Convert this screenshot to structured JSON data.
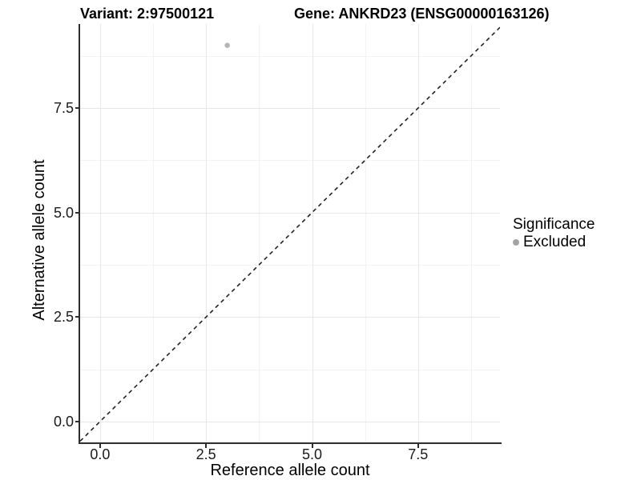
{
  "chart_data": {
    "type": "scatter",
    "titles": {
      "variant": "Variant: 2:97500121",
      "gene": "Gene: ANKRD23 (ENSG00000163126)"
    },
    "xlabel": "Reference allele count",
    "ylabel": "Alternative allele count",
    "xlim": [
      -0.47,
      9.43
    ],
    "ylim": [
      -0.5,
      9.51
    ],
    "xticks": [
      {
        "value": 0,
        "label": "0.0"
      },
      {
        "value": 2.5,
        "label": "2.5"
      },
      {
        "value": 5,
        "label": "5.0"
      },
      {
        "value": 7.5,
        "label": "7.5"
      }
    ],
    "yticks": [
      {
        "value": 0,
        "label": "0.0"
      },
      {
        "value": 2.5,
        "label": "2.5"
      },
      {
        "value": 5,
        "label": "5.0"
      },
      {
        "value": 7.5,
        "label": "7.5"
      }
    ],
    "xminor": [
      1.25,
      3.75,
      6.25,
      8.75
    ],
    "yminor": [
      1.25,
      3.75,
      6.25,
      8.75
    ],
    "grid": {
      "major_color": "#e7e7e7",
      "minor_color": "#f3f3f3"
    },
    "identity_line": {
      "equation": "y = x",
      "style": "dashed",
      "color": "#222222"
    },
    "series": [
      {
        "name": "Excluded",
        "color": "#b5b5b5",
        "marker": "circle",
        "points": [
          {
            "x": 3,
            "y": 9
          }
        ]
      }
    ],
    "legend": {
      "title": "Significance",
      "position": "right",
      "entries": [
        {
          "label": "Excluded",
          "color": "#a3a3a3",
          "marker": "circle"
        }
      ]
    }
  }
}
